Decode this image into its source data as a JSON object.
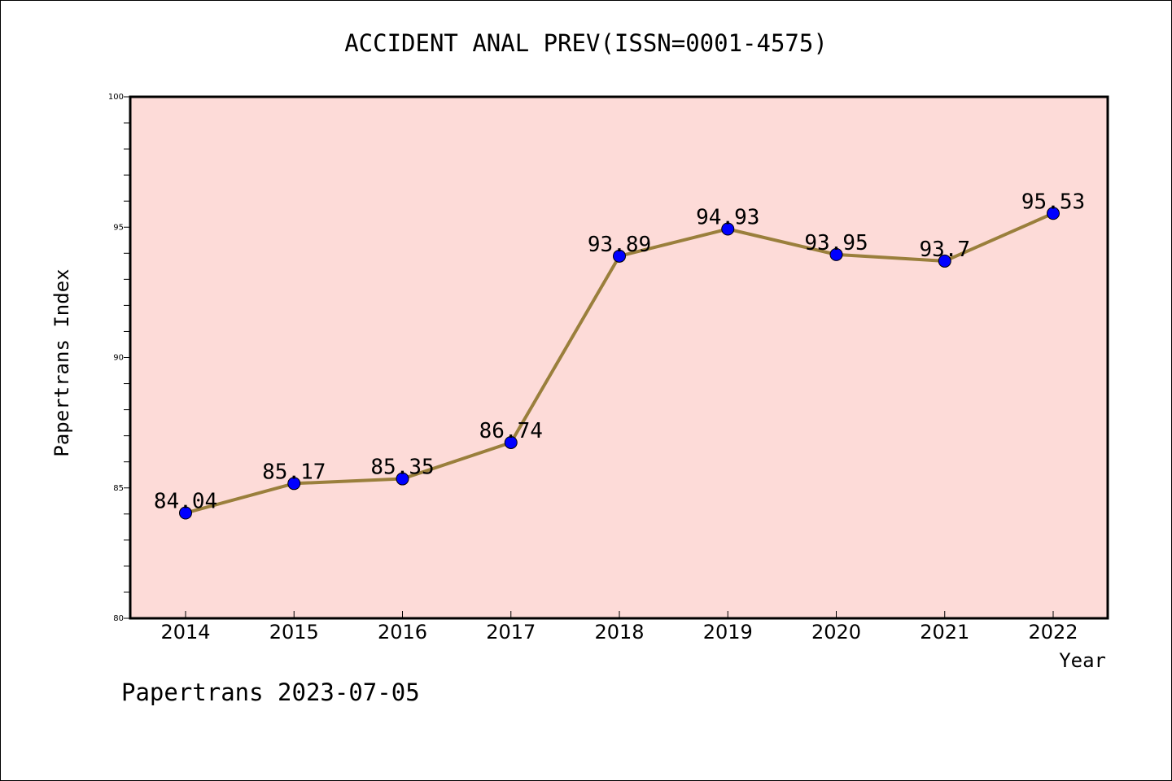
{
  "title": "ACCIDENT ANAL PREV(ISSN=0001-4575)",
  "footer": "Papertrans 2023-07-05",
  "chart_data": {
    "type": "line",
    "title": "ACCIDENT ANAL PREV(ISSN=0001-4575)",
    "xlabel": "Year",
    "ylabel": "Papertrans Index",
    "categories": [
      "2014",
      "2015",
      "2016",
      "2017",
      "2018",
      "2019",
      "2020",
      "2021",
      "2022"
    ],
    "values": [
      84.04,
      85.17,
      85.35,
      86.74,
      93.89,
      94.93,
      93.95,
      93.7,
      95.53
    ],
    "data_labels": [
      "84.04",
      "85.17",
      "85.35",
      "86.74",
      "93.89",
      "94.93",
      "93.95",
      "93.7",
      "95.53"
    ],
    "ylim": [
      80,
      100
    ],
    "yticks": [
      80,
      85,
      90,
      95,
      100
    ],
    "ytick_labels": [
      "80",
      "85",
      "90",
      "95",
      "100"
    ],
    "grid": false,
    "colors": {
      "plot_background": "#fddbd8",
      "line": "#9a7f3c",
      "marker": "#0000ff",
      "axis": "#000000"
    }
  }
}
